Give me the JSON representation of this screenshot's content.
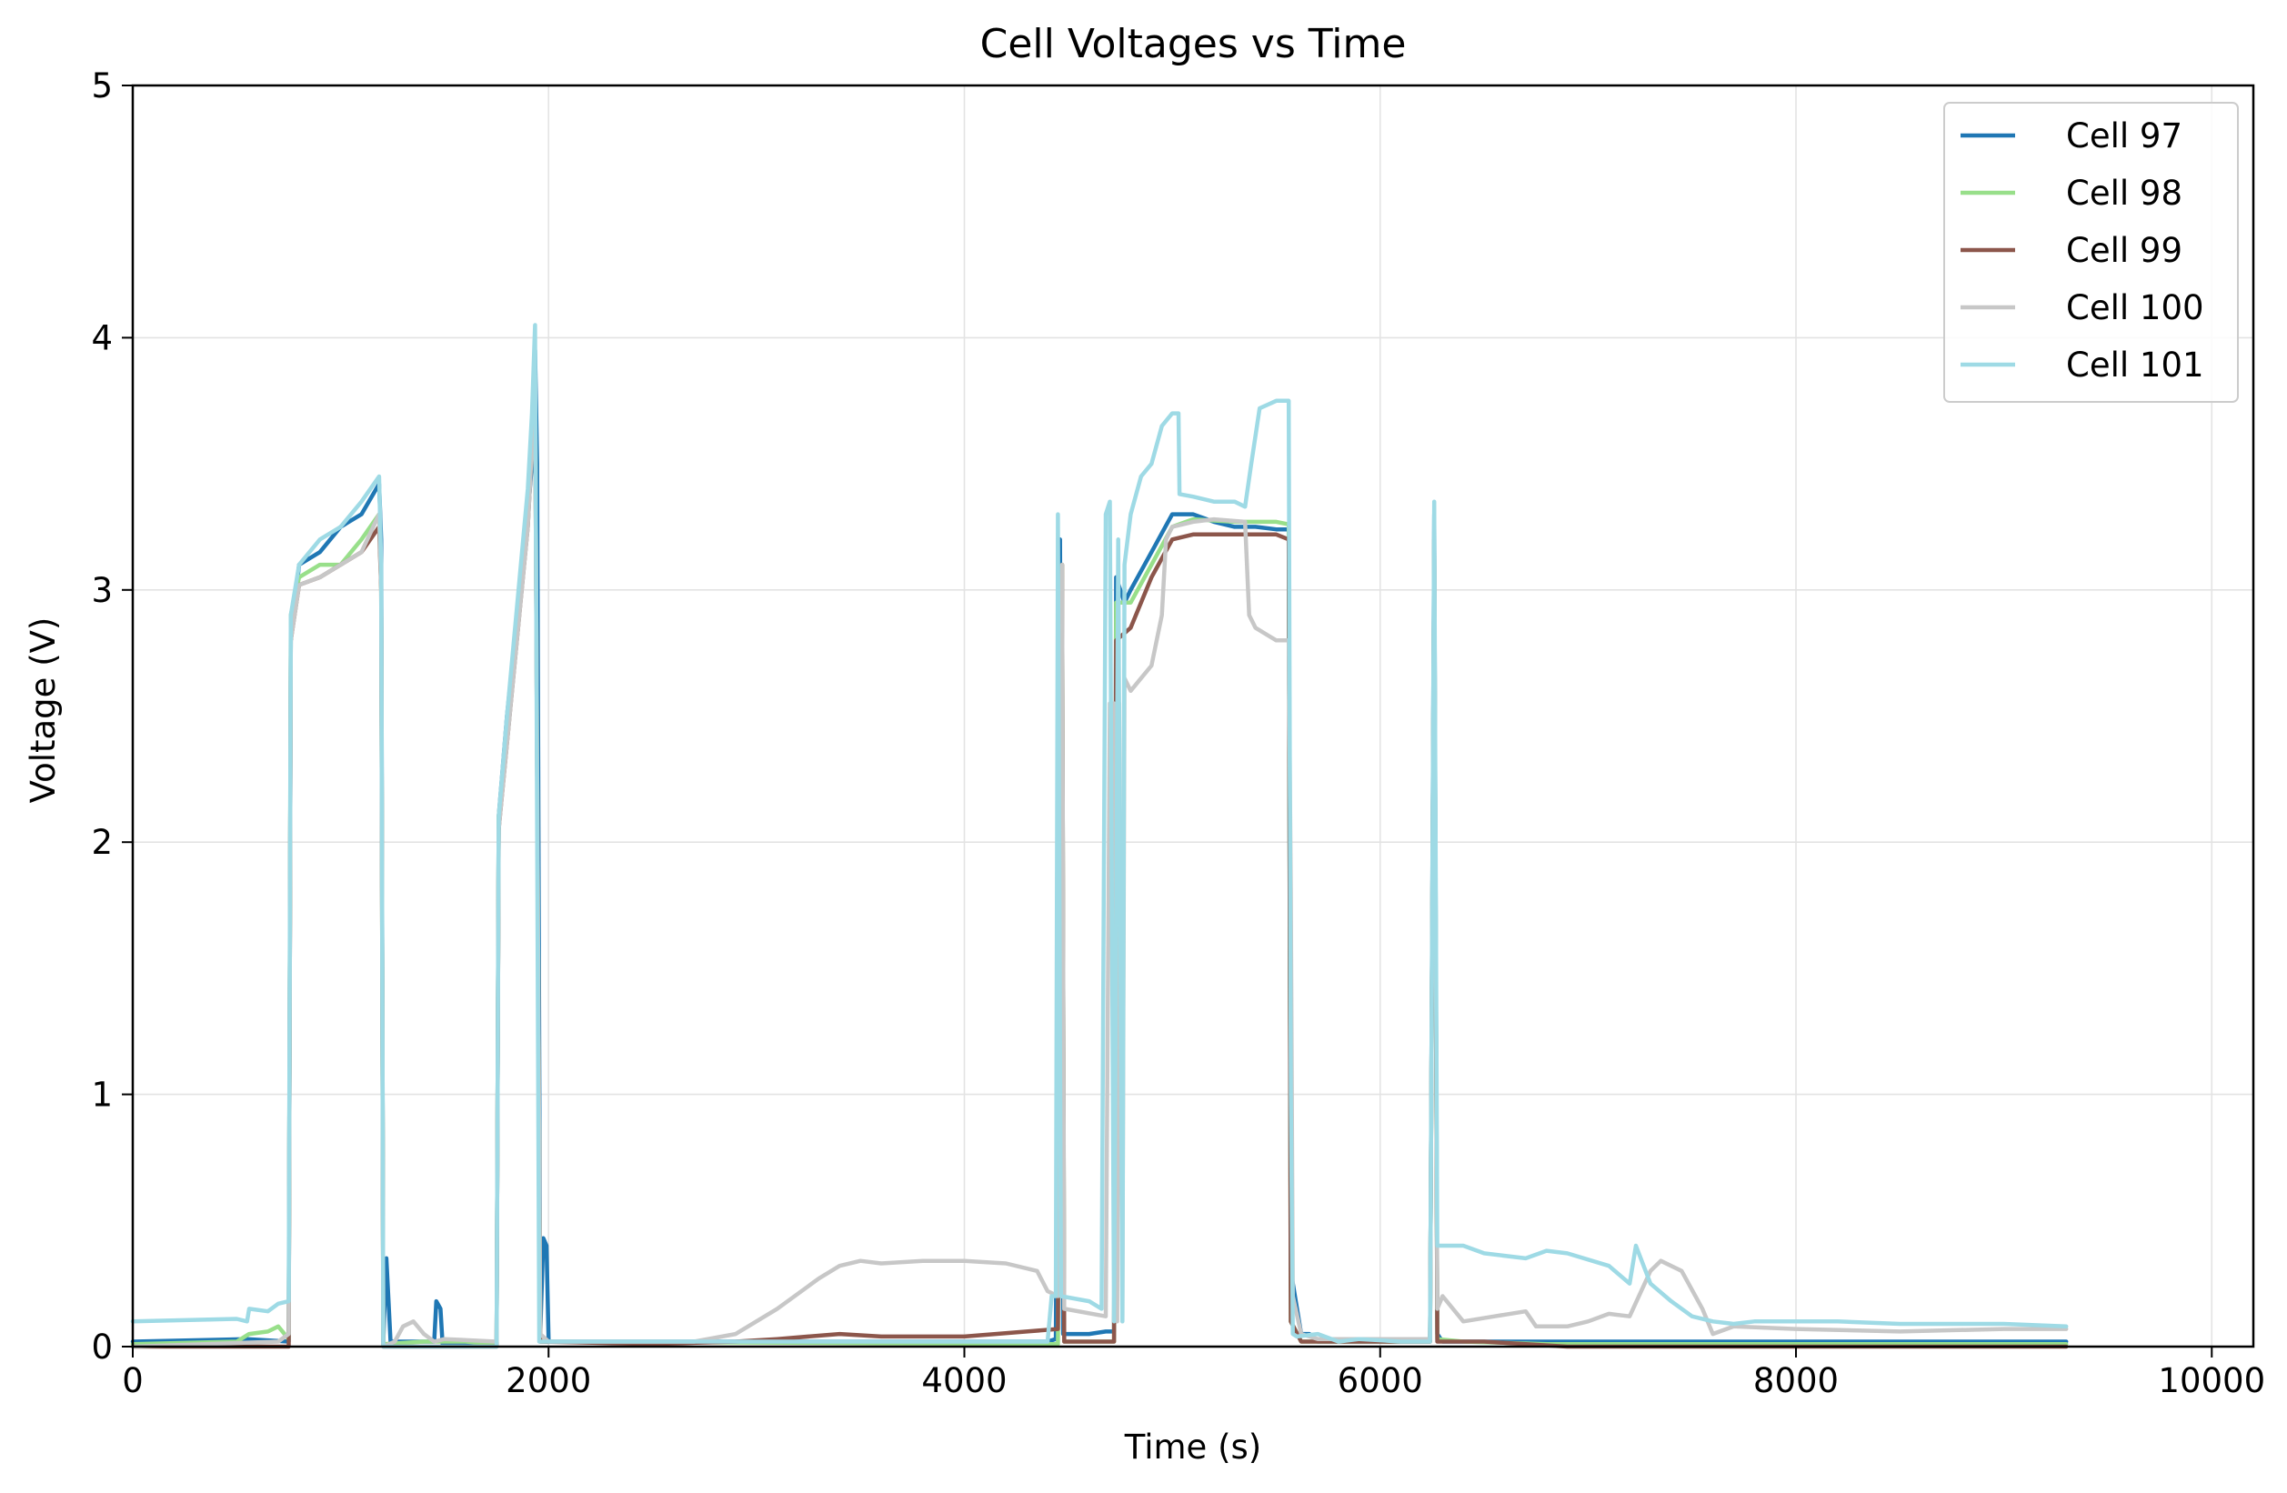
{
  "chart_data": {
    "type": "line",
    "title": "Cell Voltages vs Time",
    "xlabel": "Time (s)",
    "ylabel": "Voltage (V)",
    "xlim": [
      0,
      10200
    ],
    "ylim": [
      0,
      5
    ],
    "xticks": [
      0,
      2000,
      4000,
      6000,
      8000,
      10000
    ],
    "yticks": [
      0,
      1,
      2,
      3,
      4,
      5
    ],
    "grid": true,
    "legend_position": "top-right",
    "series": [
      {
        "name": "Cell 97",
        "color": "#1f77b4",
        "points": [
          [
            0,
            0.02
          ],
          [
            550,
            0.03
          ],
          [
            750,
            0.02
          ],
          [
            760,
            2.8
          ],
          [
            800,
            3.1
          ],
          [
            900,
            3.15
          ],
          [
            1000,
            3.25
          ],
          [
            1100,
            3.3
          ],
          [
            1185,
            3.42
          ],
          [
            1195,
            3.2
          ],
          [
            1205,
            0.02
          ],
          [
            1220,
            0.35
          ],
          [
            1240,
            0.02
          ],
          [
            1450,
            0.02
          ],
          [
            1460,
            0.18
          ],
          [
            1480,
            0.15
          ],
          [
            1490,
            0.01
          ],
          [
            1750,
            0.01
          ],
          [
            1760,
            2.1
          ],
          [
            1800,
            2.5
          ],
          [
            1850,
            2.9
          ],
          [
            1900,
            3.3
          ],
          [
            1920,
            3.5
          ],
          [
            1935,
            3.95
          ],
          [
            1945,
            3.5
          ],
          [
            1960,
            0.05
          ],
          [
            1975,
            0.43
          ],
          [
            1990,
            0.4
          ],
          [
            2000,
            0.02
          ],
          [
            4400,
            0.02
          ],
          [
            4440,
            0.03
          ],
          [
            4460,
            3.2
          ],
          [
            4475,
            0.05
          ],
          [
            4600,
            0.05
          ],
          [
            4680,
            0.06
          ],
          [
            4720,
            0.06
          ],
          [
            4730,
            3.05
          ],
          [
            4770,
            2.95
          ],
          [
            4800,
            3.0
          ],
          [
            4900,
            3.15
          ],
          [
            5000,
            3.3
          ],
          [
            5100,
            3.3
          ],
          [
            5200,
            3.27
          ],
          [
            5300,
            3.25
          ],
          [
            5400,
            3.25
          ],
          [
            5500,
            3.24
          ],
          [
            5560,
            3.24
          ],
          [
            5570,
            0.3
          ],
          [
            5620,
            0.05
          ],
          [
            5660,
            0.05
          ],
          [
            5700,
            0.02
          ],
          [
            6240,
            0.02
          ],
          [
            6260,
            3.3
          ],
          [
            6275,
            0.05
          ],
          [
            6300,
            0.02
          ],
          [
            9300,
            0.02
          ]
        ]
      },
      {
        "name": "Cell 98",
        "color": "#98df8a",
        "points": [
          [
            0,
            0.01
          ],
          [
            500,
            0.02
          ],
          [
            560,
            0.05
          ],
          [
            650,
            0.06
          ],
          [
            700,
            0.08
          ],
          [
            750,
            0.03
          ],
          [
            760,
            2.9
          ],
          [
            800,
            3.05
          ],
          [
            900,
            3.1
          ],
          [
            1000,
            3.1
          ],
          [
            1100,
            3.2
          ],
          [
            1185,
            3.3
          ],
          [
            1195,
            3.0
          ],
          [
            1205,
            0.01
          ],
          [
            1400,
            0.02
          ],
          [
            1600,
            0.02
          ],
          [
            1750,
            0.01
          ],
          [
            1760,
            2.1
          ],
          [
            1900,
            3.3
          ],
          [
            1935,
            3.85
          ],
          [
            1960,
            0.02
          ],
          [
            4450,
            0.01
          ],
          [
            4470,
            3.1
          ],
          [
            4480,
            0.02
          ],
          [
            4700,
            0.02
          ],
          [
            4720,
            0.02
          ],
          [
            4730,
            2.95
          ],
          [
            4800,
            2.95
          ],
          [
            4900,
            3.1
          ],
          [
            5000,
            3.25
          ],
          [
            5100,
            3.28
          ],
          [
            5300,
            3.27
          ],
          [
            5500,
            3.27
          ],
          [
            5560,
            3.26
          ],
          [
            5570,
            0.1
          ],
          [
            5620,
            0.02
          ],
          [
            6240,
            0.02
          ],
          [
            6260,
            3.2
          ],
          [
            6275,
            0.03
          ],
          [
            6400,
            0.02
          ],
          [
            6800,
            0.01
          ],
          [
            9300,
            0.01
          ]
        ]
      },
      {
        "name": "Cell 99",
        "color": "#8c564b",
        "points": [
          [
            0,
            0.0
          ],
          [
            750,
            0.0
          ],
          [
            760,
            2.8
          ],
          [
            800,
            3.02
          ],
          [
            900,
            3.05
          ],
          [
            1000,
            3.1
          ],
          [
            1100,
            3.15
          ],
          [
            1185,
            3.25
          ],
          [
            1195,
            3.0
          ],
          [
            1205,
            0.0
          ],
          [
            1750,
            0.0
          ],
          [
            1760,
            2.05
          ],
          [
            1900,
            3.25
          ],
          [
            1935,
            3.8
          ],
          [
            1960,
            0.02
          ],
          [
            2500,
            0.01
          ],
          [
            2900,
            0.02
          ],
          [
            3100,
            0.03
          ],
          [
            3400,
            0.05
          ],
          [
            3600,
            0.04
          ],
          [
            4000,
            0.04
          ],
          [
            4300,
            0.06
          ],
          [
            4450,
            0.07
          ],
          [
            4470,
            3.1
          ],
          [
            4480,
            0.02
          ],
          [
            4700,
            0.02
          ],
          [
            4720,
            0.02
          ],
          [
            4730,
            2.8
          ],
          [
            4800,
            2.85
          ],
          [
            4900,
            3.05
          ],
          [
            5000,
            3.2
          ],
          [
            5100,
            3.22
          ],
          [
            5300,
            3.22
          ],
          [
            5500,
            3.22
          ],
          [
            5560,
            3.2
          ],
          [
            5570,
            0.1
          ],
          [
            5620,
            0.02
          ],
          [
            6240,
            0.02
          ],
          [
            6260,
            3.2
          ],
          [
            6275,
            0.02
          ],
          [
            6500,
            0.02
          ],
          [
            6900,
            0.0
          ],
          [
            9300,
            0.0
          ]
        ]
      },
      {
        "name": "Cell 100",
        "color": "#c7c7c7",
        "points": [
          [
            0,
            0.0
          ],
          [
            700,
            0.02
          ],
          [
            750,
            0.05
          ],
          [
            760,
            2.8
          ],
          [
            800,
            3.02
          ],
          [
            900,
            3.05
          ],
          [
            1000,
            3.1
          ],
          [
            1100,
            3.15
          ],
          [
            1185,
            3.3
          ],
          [
            1195,
            3.0
          ],
          [
            1205,
            0.0
          ],
          [
            1260,
            0.02
          ],
          [
            1300,
            0.08
          ],
          [
            1350,
            0.1
          ],
          [
            1400,
            0.05
          ],
          [
            1450,
            0.02
          ],
          [
            1500,
            0.03
          ],
          [
            1750,
            0.02
          ],
          [
            1760,
            2.05
          ],
          [
            1900,
            3.25
          ],
          [
            1935,
            3.8
          ],
          [
            1960,
            0.05
          ],
          [
            2000,
            0.02
          ],
          [
            2700,
            0.02
          ],
          [
            2900,
            0.05
          ],
          [
            3100,
            0.15
          ],
          [
            3300,
            0.27
          ],
          [
            3400,
            0.32
          ],
          [
            3500,
            0.34
          ],
          [
            3600,
            0.33
          ],
          [
            3800,
            0.34
          ],
          [
            4000,
            0.34
          ],
          [
            4200,
            0.33
          ],
          [
            4350,
            0.3
          ],
          [
            4400,
            0.22
          ],
          [
            4450,
            0.2
          ],
          [
            4470,
            3.1
          ],
          [
            4480,
            0.15
          ],
          [
            4680,
            0.12
          ],
          [
            4700,
            2.55
          ],
          [
            4720,
            2.55
          ],
          [
            4735,
            0.1
          ],
          [
            4745,
            2.55
          ],
          [
            4760,
            0.1
          ],
          [
            4770,
            2.65
          ],
          [
            4800,
            2.6
          ],
          [
            4850,
            2.65
          ],
          [
            4900,
            2.7
          ],
          [
            4950,
            2.9
          ],
          [
            4970,
            3.2
          ],
          [
            5000,
            3.25
          ],
          [
            5100,
            3.27
          ],
          [
            5200,
            3.28
          ],
          [
            5350,
            3.27
          ],
          [
            5370,
            2.9
          ],
          [
            5400,
            2.85
          ],
          [
            5500,
            2.8
          ],
          [
            5560,
            2.8
          ],
          [
            5570,
            1.8
          ],
          [
            5580,
            0.2
          ],
          [
            5620,
            0.05
          ],
          [
            5700,
            0.03
          ],
          [
            6240,
            0.03
          ],
          [
            6260,
            3.2
          ],
          [
            6275,
            0.15
          ],
          [
            6300,
            0.2
          ],
          [
            6400,
            0.1
          ],
          [
            6550,
            0.12
          ],
          [
            6700,
            0.14
          ],
          [
            6750,
            0.08
          ],
          [
            6900,
            0.08
          ],
          [
            7000,
            0.1
          ],
          [
            7100,
            0.13
          ],
          [
            7200,
            0.12
          ],
          [
            7300,
            0.3
          ],
          [
            7350,
            0.34
          ],
          [
            7450,
            0.3
          ],
          [
            7550,
            0.15
          ],
          [
            7600,
            0.05
          ],
          [
            7700,
            0.08
          ],
          [
            8000,
            0.07
          ],
          [
            8500,
            0.06
          ],
          [
            9000,
            0.07
          ],
          [
            9300,
            0.07
          ]
        ]
      },
      {
        "name": "Cell 101",
        "color": "#9edae5",
        "points": [
          [
            0,
            0.1
          ],
          [
            500,
            0.11
          ],
          [
            550,
            0.1
          ],
          [
            560,
            0.15
          ],
          [
            650,
            0.14
          ],
          [
            700,
            0.17
          ],
          [
            750,
            0.18
          ],
          [
            760,
            2.9
          ],
          [
            800,
            3.1
          ],
          [
            900,
            3.2
          ],
          [
            1000,
            3.25
          ],
          [
            1100,
            3.35
          ],
          [
            1185,
            3.45
          ],
          [
            1195,
            3.1
          ],
          [
            1205,
            0.0
          ],
          [
            1750,
            0.0
          ],
          [
            1760,
            2.1
          ],
          [
            1800,
            2.5
          ],
          [
            1900,
            3.4
          ],
          [
            1920,
            3.7
          ],
          [
            1935,
            4.05
          ],
          [
            1955,
            0.02
          ],
          [
            2000,
            0.02
          ],
          [
            4400,
            0.02
          ],
          [
            4420,
            0.2
          ],
          [
            4440,
            0.2
          ],
          [
            4450,
            3.3
          ],
          [
            4465,
            0.2
          ],
          [
            4600,
            0.18
          ],
          [
            4660,
            0.15
          ],
          [
            4680,
            3.3
          ],
          [
            4700,
            3.35
          ],
          [
            4720,
            0.1
          ],
          [
            4740,
            3.2
          ],
          [
            4760,
            0.1
          ],
          [
            4770,
            3.1
          ],
          [
            4800,
            3.3
          ],
          [
            4850,
            3.45
          ],
          [
            4900,
            3.5
          ],
          [
            4950,
            3.65
          ],
          [
            5000,
            3.7
          ],
          [
            5030,
            3.7
          ],
          [
            5035,
            3.38
          ],
          [
            5100,
            3.37
          ],
          [
            5200,
            3.35
          ],
          [
            5300,
            3.35
          ],
          [
            5350,
            3.33
          ],
          [
            5380,
            3.5
          ],
          [
            5420,
            3.72
          ],
          [
            5500,
            3.75
          ],
          [
            5560,
            3.75
          ],
          [
            5570,
            1.0
          ],
          [
            5580,
            0.05
          ],
          [
            5600,
            0.04
          ],
          [
            5700,
            0.05
          ],
          [
            5800,
            0.02
          ],
          [
            5900,
            0.03
          ],
          [
            6100,
            0.02
          ],
          [
            6240,
            0.02
          ],
          [
            6260,
            3.35
          ],
          [
            6275,
            0.4
          ],
          [
            6300,
            0.4
          ],
          [
            6400,
            0.4
          ],
          [
            6500,
            0.37
          ],
          [
            6700,
            0.35
          ],
          [
            6800,
            0.38
          ],
          [
            6900,
            0.37
          ],
          [
            7100,
            0.32
          ],
          [
            7200,
            0.25
          ],
          [
            7230,
            0.4
          ],
          [
            7300,
            0.25
          ],
          [
            7400,
            0.18
          ],
          [
            7500,
            0.12
          ],
          [
            7600,
            0.1
          ],
          [
            7700,
            0.09
          ],
          [
            7800,
            0.1
          ],
          [
            8000,
            0.1
          ],
          [
            8200,
            0.1
          ],
          [
            8500,
            0.09
          ],
          [
            9000,
            0.09
          ],
          [
            9300,
            0.08
          ]
        ]
      }
    ]
  }
}
